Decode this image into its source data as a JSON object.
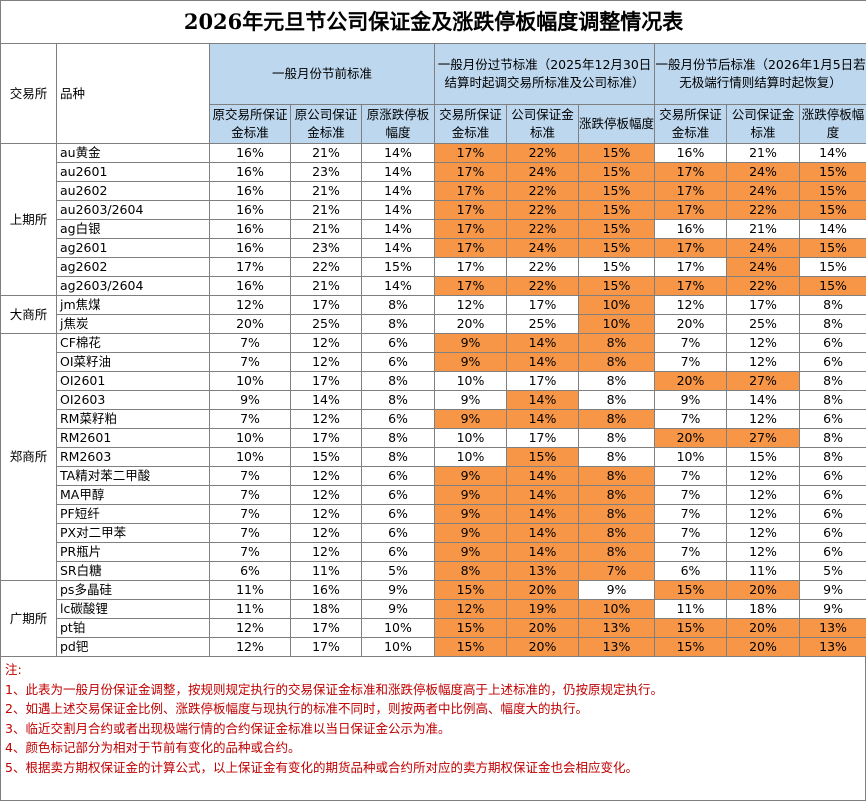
{
  "title": "2026年元旦节公司保证金及涨跌停板幅度调整情况表",
  "headers": {
    "exchange": "交易所",
    "product": "品种",
    "group_before": "一般月份节前标准",
    "group_during": "一般月份过节标准（2025年12月30日结算时起调交易所标准及公司标准）",
    "group_after": "一般月份节后标准（2026年1月5日若无极端行情则结算时起恢复）",
    "before_cols": [
      "原交易所保证金标准",
      "原公司保证金标准",
      "原涨跌停板幅度"
    ],
    "during_cols": [
      "交易所保证金标准",
      "公司保证金标准",
      "涨跌停板幅度"
    ],
    "after_cols": [
      "交易所保证金标准",
      "公司保证金标准",
      "涨跌停板幅度"
    ]
  },
  "highlight_color": "#f79646",
  "header_color": "#bdd7ee",
  "groups": [
    {
      "exchange": "上期所",
      "rows": [
        {
          "product": "au黄金",
          "v": [
            "16%",
            "21%",
            "14%",
            "17%",
            "22%",
            "15%",
            "16%",
            "21%",
            "14%"
          ],
          "hl": [
            3,
            4,
            5
          ]
        },
        {
          "product": "au2601",
          "v": [
            "16%",
            "23%",
            "14%",
            "17%",
            "24%",
            "15%",
            "17%",
            "24%",
            "15%"
          ],
          "hl": [
            3,
            4,
            5,
            6,
            7,
            8
          ]
        },
        {
          "product": "au2602",
          "v": [
            "16%",
            "21%",
            "14%",
            "17%",
            "22%",
            "15%",
            "17%",
            "24%",
            "15%"
          ],
          "hl": [
            3,
            4,
            5,
            6,
            7,
            8
          ]
        },
        {
          "product": "au2603/2604",
          "v": [
            "16%",
            "21%",
            "14%",
            "17%",
            "22%",
            "15%",
            "17%",
            "22%",
            "15%"
          ],
          "hl": [
            3,
            4,
            5,
            6,
            7,
            8
          ]
        },
        {
          "product": "ag白银",
          "v": [
            "16%",
            "21%",
            "14%",
            "17%",
            "22%",
            "15%",
            "16%",
            "21%",
            "14%"
          ],
          "hl": [
            3,
            4,
            5
          ]
        },
        {
          "product": "ag2601",
          "v": [
            "16%",
            "23%",
            "14%",
            "17%",
            "24%",
            "15%",
            "17%",
            "24%",
            "15%"
          ],
          "hl": [
            3,
            4,
            5,
            6,
            7,
            8
          ]
        },
        {
          "product": "ag2602",
          "v": [
            "17%",
            "22%",
            "15%",
            "17%",
            "22%",
            "15%",
            "17%",
            "24%",
            "15%"
          ],
          "hl": [
            7
          ]
        },
        {
          "product": "ag2603/2604",
          "v": [
            "16%",
            "21%",
            "14%",
            "17%",
            "22%",
            "15%",
            "17%",
            "22%",
            "15%"
          ],
          "hl": [
            3,
            4,
            5,
            6,
            7,
            8
          ]
        }
      ]
    },
    {
      "exchange": "大商所",
      "rows": [
        {
          "product": "jm焦煤",
          "v": [
            "12%",
            "17%",
            "8%",
            "12%",
            "17%",
            "10%",
            "12%",
            "17%",
            "8%"
          ],
          "hl": [
            5
          ]
        },
        {
          "product": "j焦炭",
          "v": [
            "20%",
            "25%",
            "8%",
            "20%",
            "25%",
            "10%",
            "20%",
            "25%",
            "8%"
          ],
          "hl": [
            5
          ]
        }
      ]
    },
    {
      "exchange": "郑商所",
      "rows": [
        {
          "product": "CF棉花",
          "v": [
            "7%",
            "12%",
            "6%",
            "9%",
            "14%",
            "8%",
            "7%",
            "12%",
            "6%"
          ],
          "hl": [
            3,
            4,
            5
          ]
        },
        {
          "product": "OI菜籽油",
          "v": [
            "7%",
            "12%",
            "6%",
            "9%",
            "14%",
            "8%",
            "7%",
            "12%",
            "6%"
          ],
          "hl": [
            3,
            4,
            5
          ]
        },
        {
          "product": "OI2601",
          "v": [
            "10%",
            "17%",
            "8%",
            "10%",
            "17%",
            "8%",
            "20%",
            "27%",
            "8%"
          ],
          "hl": [
            6,
            7
          ]
        },
        {
          "product": "OI2603",
          "v": [
            "9%",
            "14%",
            "8%",
            "9%",
            "14%",
            "8%",
            "9%",
            "14%",
            "8%"
          ],
          "hl": [
            4
          ]
        },
        {
          "product": "RM菜籽粕",
          "v": [
            "7%",
            "12%",
            "6%",
            "9%",
            "14%",
            "8%",
            "7%",
            "12%",
            "6%"
          ],
          "hl": [
            3,
            4,
            5
          ]
        },
        {
          "product": "RM2601",
          "v": [
            "10%",
            "17%",
            "8%",
            "10%",
            "17%",
            "8%",
            "20%",
            "27%",
            "8%"
          ],
          "hl": [
            6,
            7
          ]
        },
        {
          "product": "RM2603",
          "v": [
            "10%",
            "15%",
            "8%",
            "10%",
            "15%",
            "8%",
            "10%",
            "15%",
            "8%"
          ],
          "hl": [
            4
          ]
        },
        {
          "product": "TA精对苯二甲酸",
          "v": [
            "7%",
            "12%",
            "6%",
            "9%",
            "14%",
            "8%",
            "7%",
            "12%",
            "6%"
          ],
          "hl": [
            3,
            4,
            5
          ]
        },
        {
          "product": "MA甲醇",
          "v": [
            "7%",
            "12%",
            "6%",
            "9%",
            "14%",
            "8%",
            "7%",
            "12%",
            "6%"
          ],
          "hl": [
            3,
            4,
            5
          ]
        },
        {
          "product": "PF短纤",
          "v": [
            "7%",
            "12%",
            "6%",
            "9%",
            "14%",
            "8%",
            "7%",
            "12%",
            "6%"
          ],
          "hl": [
            3,
            4,
            5
          ]
        },
        {
          "product": "PX对二甲苯",
          "v": [
            "7%",
            "12%",
            "6%",
            "9%",
            "14%",
            "8%",
            "7%",
            "12%",
            "6%"
          ],
          "hl": [
            3,
            4,
            5
          ]
        },
        {
          "product": "PR瓶片",
          "v": [
            "7%",
            "12%",
            "6%",
            "9%",
            "14%",
            "8%",
            "7%",
            "12%",
            "6%"
          ],
          "hl": [
            3,
            4,
            5
          ]
        },
        {
          "product": "SR白糖",
          "v": [
            "6%",
            "11%",
            "5%",
            "8%",
            "13%",
            "7%",
            "6%",
            "11%",
            "5%"
          ],
          "hl": [
            3,
            4,
            5
          ]
        }
      ]
    },
    {
      "exchange": "广期所",
      "rows": [
        {
          "product": "ps多晶硅",
          "v": [
            "11%",
            "16%",
            "9%",
            "15%",
            "20%",
            "9%",
            "15%",
            "20%",
            "9%"
          ],
          "hl": [
            3,
            4,
            6,
            7
          ]
        },
        {
          "product": "lc碳酸锂",
          "v": [
            "11%",
            "18%",
            "9%",
            "12%",
            "19%",
            "10%",
            "11%",
            "18%",
            "9%"
          ],
          "hl": [
            3,
            4,
            5
          ]
        },
        {
          "product": "pt铂",
          "v": [
            "12%",
            "17%",
            "10%",
            "15%",
            "20%",
            "13%",
            "15%",
            "20%",
            "13%"
          ],
          "hl": [
            3,
            4,
            5,
            6,
            7,
            8
          ]
        },
        {
          "product": "pd钯",
          "v": [
            "12%",
            "17%",
            "10%",
            "15%",
            "20%",
            "13%",
            "15%",
            "20%",
            "13%"
          ],
          "hl": [
            3,
            4,
            5,
            6,
            7,
            8
          ]
        }
      ]
    }
  ],
  "notes": [
    "注:",
    "1、此表为一般月份保证金调整，按规则规定执行的交易保证金标准和涨跌停板幅度高于上述标准的，仍按原规定执行。",
    "2、如遇上述交易保证金比例、涨跌停板幅度与现执行的标准不同时，则按两者中比例高、幅度大的执行。",
    "3、临近交割月合约或者出现极端行情的合约保证金标准以当日保证金公示为准。",
    "4、颜色标记部分为相对于节前有变化的品种或合约。",
    "5、根据卖方期权保证金的计算公式，以上保证金有变化的期货品种或合约所对应的卖方期权保证金也会相应变化。"
  ]
}
